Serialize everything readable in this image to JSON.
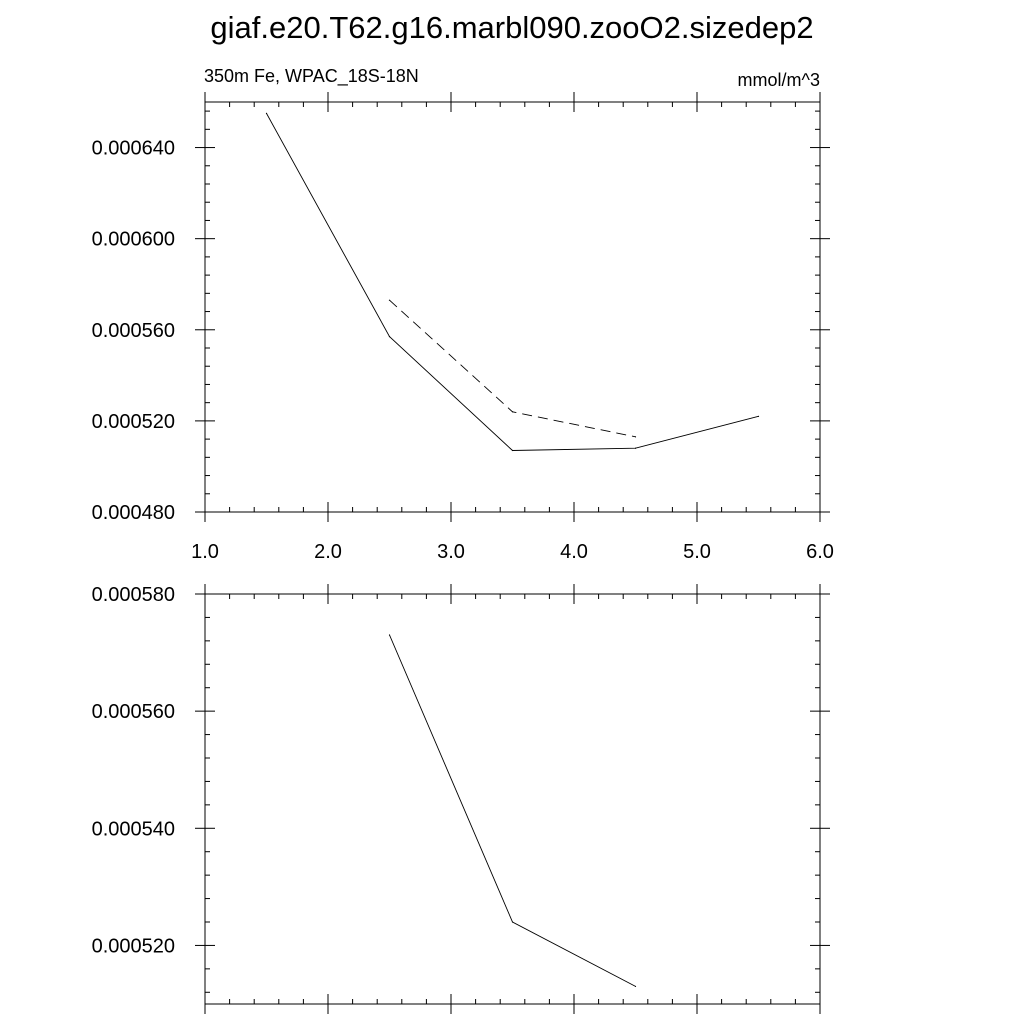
{
  "title": "giaf.e20.T62.g16.marbl090.zooO2.sizedep2",
  "chart_data": [
    {
      "type": "line",
      "left_label": "350m Fe, WPAC_18S-18N",
      "right_label": "mmol/m^3",
      "xlim": [
        1.0,
        6.0
      ],
      "ylim": [
        0.00048,
        0.00066
      ],
      "x_ticks": [
        "1.0",
        "2.0",
        "3.0",
        "4.0",
        "5.0",
        "6.0"
      ],
      "y_ticks": [
        "0.000480",
        "0.000520",
        "0.000560",
        "0.000600",
        "0.000640"
      ],
      "series": [
        {
          "style": "solid",
          "x": [
            1.5,
            2.5,
            3.5,
            4.5,
            5.5
          ],
          "y": [
            0.000655,
            0.000557,
            0.000507,
            0.000508,
            0.000522
          ]
        },
        {
          "style": "dashed",
          "x": [
            2.5,
            3.5,
            4.5
          ],
          "y": [
            0.000573,
            0.000524,
            0.000513
          ]
        }
      ]
    },
    {
      "type": "line",
      "xlim": [
        1.0,
        6.0
      ],
      "ylim": [
        0.00051,
        0.00058
      ],
      "x_ticks": [],
      "y_ticks": [
        "0.000520",
        "0.000540",
        "0.000560",
        "0.000580"
      ],
      "series": [
        {
          "style": "solid",
          "x": [
            2.5,
            3.5,
            4.5
          ],
          "y": [
            0.000573,
            0.000524,
            0.000513
          ]
        }
      ]
    }
  ]
}
